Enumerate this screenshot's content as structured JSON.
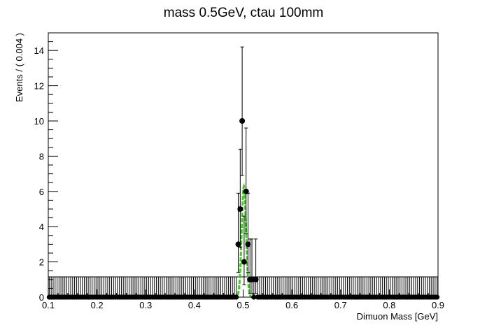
{
  "chart_data": {
    "type": "scatter",
    "title": "mass 0.5GeV, ctau 100mm",
    "xlabel": "Dimuon Mass [GeV]",
    "ylabel": "Events / ( 0.004 )",
    "xlim": [
      0.1,
      0.9
    ],
    "ylim": [
      0,
      15
    ],
    "xticks": [
      "0.1",
      "0.2",
      "0.3",
      "0.4",
      "0.5",
      "0.6",
      "0.7",
      "0.8",
      "0.9"
    ],
    "yticks": [
      "0",
      "2",
      "4",
      "6",
      "8",
      "10",
      "12",
      "14"
    ],
    "grid": false,
    "legend": "none",
    "bin_width": 0.004,
    "zero_bin_error_band": 1.15,
    "data_points": {
      "name": "data",
      "color": "#000000",
      "points": [
        {
          "x": 0.478,
          "y": 0,
          "err_hi": 1.15
        },
        {
          "x": 0.49,
          "y": 3,
          "err_lo": 1.6,
          "err_hi": 2.9
        },
        {
          "x": 0.494,
          "y": 5,
          "err_lo": 2.2,
          "err_hi": 3.4
        },
        {
          "x": 0.498,
          "y": 10,
          "err_lo": 3.1,
          "err_hi": 4.2
        },
        {
          "x": 0.502,
          "y": 2,
          "err_lo": 1.3,
          "err_hi": 2.6
        },
        {
          "x": 0.506,
          "y": 6,
          "err_lo": 2.4,
          "err_hi": 3.6
        },
        {
          "x": 0.51,
          "y": 3,
          "err_lo": 1.6,
          "err_hi": 2.9
        },
        {
          "x": 0.514,
          "y": 1,
          "err_lo": 0.8,
          "err_hi": 2.3
        },
        {
          "x": 0.518,
          "y": 1,
          "err_lo": 0.8,
          "err_hi": 2.3
        },
        {
          "x": 0.526,
          "y": 1,
          "err_lo": 0.8,
          "err_hi": 2.3
        }
      ]
    },
    "fit_curve": {
      "name": "fit",
      "color": "#3ecf1e",
      "style": "dashed",
      "mean": 0.5015,
      "sigma_core": 0.0045,
      "peak": 6.3,
      "left_tail_start": 0.46
    }
  }
}
